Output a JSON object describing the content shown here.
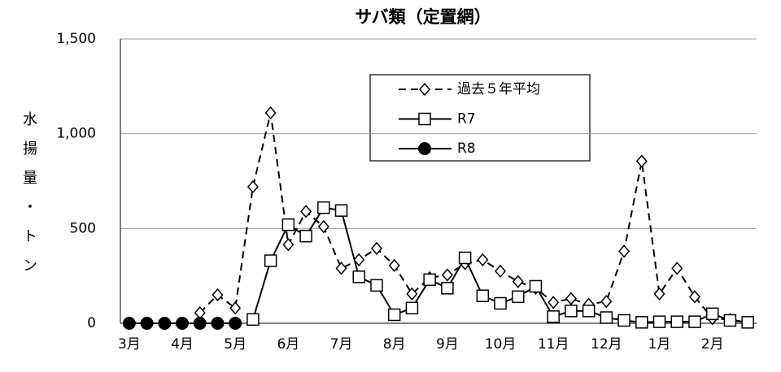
{
  "chart_data": {
    "type": "line",
    "title": "サバ類（定置網）",
    "y_label": "水揚量・トン",
    "categories": [
      "3月",
      null,
      null,
      "4月",
      null,
      null,
      "5月",
      null,
      null,
      "6月",
      null,
      null,
      "7月",
      null,
      null,
      "8月",
      null,
      null,
      "9月",
      null,
      null,
      "10月",
      null,
      null,
      "11月",
      null,
      null,
      "12月",
      null,
      null,
      "1月",
      null,
      null,
      "2月",
      null,
      null
    ],
    "series": [
      {
        "name": "過去５年平均",
        "color": "#000000",
        "marker": "diamond",
        "dashed": true,
        "values": [
          null,
          null,
          null,
          null,
          55,
          150,
          80,
          720,
          1110,
          415,
          590,
          510,
          290,
          335,
          395,
          305,
          155,
          240,
          255,
          315,
          335,
          275,
          220,
          185,
          110,
          130,
          100,
          115,
          380,
          855,
          155,
          290,
          140,
          25,
          20,
          5
        ]
      },
      {
        "name": "R7",
        "color": "#000000",
        "marker": "square",
        "dashed": false,
        "values": [
          null,
          null,
          null,
          null,
          null,
          null,
          null,
          20,
          330,
          520,
          460,
          610,
          595,
          245,
          200,
          45,
          80,
          230,
          185,
          345,
          145,
          105,
          140,
          195,
          35,
          65,
          65,
          30,
          15,
          5,
          8,
          8,
          8,
          50,
          15,
          5
        ]
      },
      {
        "name": "R8",
        "color": "#000000",
        "marker": "circle",
        "dashed": false,
        "values": [
          0,
          0,
          0,
          0,
          0,
          0,
          0,
          null,
          null,
          null,
          null,
          null,
          null,
          null,
          null,
          null,
          null,
          null,
          null,
          null,
          null,
          null,
          null,
          null,
          null,
          null,
          null,
          null,
          null,
          null,
          null,
          null,
          null,
          null,
          null,
          null
        ]
      }
    ],
    "ylim": [
      0,
      1500
    ],
    "yticks": [
      0,
      500,
      {
        "value": 1000,
        "label": "1,000"
      },
      {
        "value": 1500,
        "label": "1,500"
      }
    ],
    "grid": true
  }
}
